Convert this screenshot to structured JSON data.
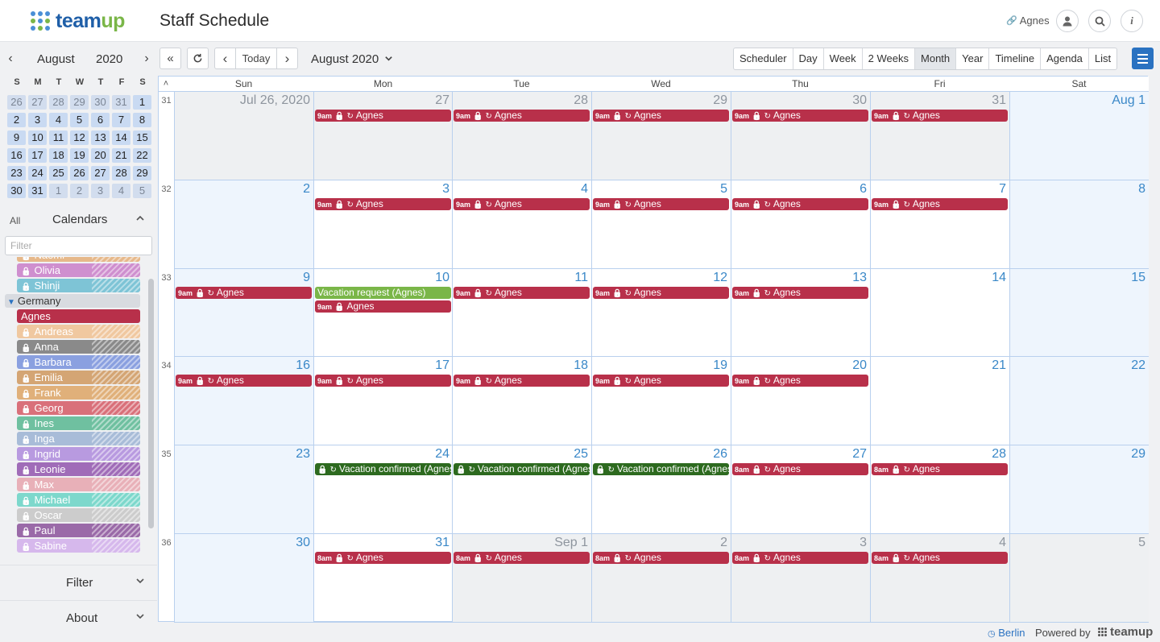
{
  "app": {
    "brand_a": "team",
    "brand_b": "up",
    "title": "Staff Schedule",
    "user": "Agnes"
  },
  "colors": {
    "agnes": "#b8304a",
    "vacation_request": "#7ab648",
    "vacation_confirmed": "#2d6a1f",
    "accent": "#2a72c1"
  },
  "mini_calendar": {
    "month": "August",
    "year": "2020",
    "dow": [
      "S",
      "M",
      "T",
      "W",
      "T",
      "F",
      "S"
    ],
    "weeks": [
      [
        "26",
        "27",
        "28",
        "29",
        "30",
        "31",
        "1"
      ],
      [
        "2",
        "3",
        "4",
        "5",
        "6",
        "7",
        "8"
      ],
      [
        "9",
        "10",
        "11",
        "12",
        "13",
        "14",
        "15"
      ],
      [
        "16",
        "17",
        "18",
        "19",
        "20",
        "21",
        "22"
      ],
      [
        "23",
        "24",
        "25",
        "26",
        "27",
        "28",
        "29"
      ],
      [
        "30",
        "31",
        "1",
        "2",
        "3",
        "4",
        "5"
      ]
    ],
    "other_month": [
      [
        0,
        0
      ],
      [
        0,
        1
      ],
      [
        0,
        2
      ],
      [
        0,
        3
      ],
      [
        0,
        4
      ],
      [
        0,
        5
      ],
      [
        5,
        2
      ],
      [
        5,
        3
      ],
      [
        5,
        4
      ],
      [
        5,
        5
      ],
      [
        5,
        6
      ]
    ]
  },
  "calendars": {
    "all_label": "All",
    "title": "Calendars",
    "filter_placeholder": "Filter",
    "group": "Germany",
    "items": [
      {
        "name": "Naomi",
        "color": "#e6b88a",
        "locked": true
      },
      {
        "name": "Olivia",
        "color": "#cf8fcf",
        "locked": true
      },
      {
        "name": "Shinji",
        "color": "#7ec4d6",
        "locked": true
      },
      {
        "name": "Agnes",
        "color": "#b8304a",
        "locked": false
      },
      {
        "name": "Andreas",
        "color": "#f0c8a0",
        "locked": true
      },
      {
        "name": "Anna",
        "color": "#8a8a8a",
        "locked": true
      },
      {
        "name": "Barbara",
        "color": "#8aa0e0",
        "locked": true
      },
      {
        "name": "Emilia",
        "color": "#d4a574",
        "locked": true
      },
      {
        "name": "Frank",
        "color": "#e0b07a",
        "locked": true
      },
      {
        "name": "Georg",
        "color": "#d9707a",
        "locked": true
      },
      {
        "name": "Ines",
        "color": "#6fc0a0",
        "locked": true
      },
      {
        "name": "Inga",
        "color": "#a8bcd8",
        "locked": true
      },
      {
        "name": "Ingrid",
        "color": "#b89ae0",
        "locked": true
      },
      {
        "name": "Leonie",
        "color": "#a06cb8",
        "locked": true
      },
      {
        "name": "Max",
        "color": "#e8b0b8",
        "locked": true
      },
      {
        "name": "Michael",
        "color": "#7dd8cc",
        "locked": true
      },
      {
        "name": "Oscar",
        "color": "#cccccc",
        "locked": true
      },
      {
        "name": "Paul",
        "color": "#9a6aa8",
        "locked": true
      },
      {
        "name": "Sabine",
        "color": "#d6b8ec",
        "locked": true
      }
    ]
  },
  "sections": {
    "filter": "Filter",
    "about": "About"
  },
  "toolbar": {
    "today": "Today",
    "view_label": "August 2020",
    "views": [
      "Scheduler",
      "Day",
      "Week",
      "2 Weeks",
      "Month",
      "Year",
      "Timeline",
      "Agenda",
      "List"
    ],
    "active_view": "Month"
  },
  "month_view": {
    "dow": [
      "Sun",
      "Mon",
      "Tue",
      "Wed",
      "Thu",
      "Fri",
      "Sat"
    ],
    "weeks": [
      {
        "week": "31",
        "days": [
          "Jul 26, 2020",
          "27",
          "28",
          "29",
          "30",
          "31",
          "Aug 1"
        ],
        "other": [
          0,
          1,
          2,
          3,
          4,
          5
        ]
      },
      {
        "week": "32",
        "days": [
          "2",
          "3",
          "4",
          "5",
          "6",
          "7",
          "8"
        ],
        "other": []
      },
      {
        "week": "33",
        "days": [
          "9",
          "10",
          "11",
          "12",
          "13",
          "14",
          "15"
        ],
        "other": []
      },
      {
        "week": "34",
        "days": [
          "16",
          "17",
          "18",
          "19",
          "20",
          "21",
          "22"
        ],
        "other": []
      },
      {
        "week": "35",
        "days": [
          "23",
          "24",
          "25",
          "26",
          "27",
          "28",
          "29"
        ],
        "other": []
      },
      {
        "week": "36",
        "days": [
          "30",
          "31",
          "Sep 1",
          "2",
          "3",
          "4",
          "5"
        ],
        "other": [
          2,
          3,
          4,
          5,
          6
        ]
      }
    ],
    "events": [
      {
        "w": 0,
        "d": 1,
        "slot": 0,
        "time": "9am",
        "title": "Agnes",
        "kind": "agnes",
        "lock": true,
        "repeat": true
      },
      {
        "w": 0,
        "d": 2,
        "slot": 0,
        "time": "9am",
        "title": "Agnes",
        "kind": "agnes",
        "lock": true,
        "repeat": true
      },
      {
        "w": 0,
        "d": 3,
        "slot": 0,
        "time": "9am",
        "title": "Agnes",
        "kind": "agnes",
        "lock": true,
        "repeat": true
      },
      {
        "w": 0,
        "d": 4,
        "slot": 0,
        "time": "9am",
        "title": "Agnes",
        "kind": "agnes",
        "lock": true,
        "repeat": true
      },
      {
        "w": 0,
        "d": 5,
        "slot": 0,
        "time": "9am",
        "title": "Agnes",
        "kind": "agnes",
        "lock": true,
        "repeat": true
      },
      {
        "w": 1,
        "d": 1,
        "slot": 0,
        "time": "9am",
        "title": "Agnes",
        "kind": "agnes",
        "lock": true,
        "repeat": true
      },
      {
        "w": 1,
        "d": 2,
        "slot": 0,
        "time": "9am",
        "title": "Agnes",
        "kind": "agnes",
        "lock": true,
        "repeat": true
      },
      {
        "w": 1,
        "d": 3,
        "slot": 0,
        "time": "9am",
        "title": "Agnes",
        "kind": "agnes",
        "lock": true,
        "repeat": true
      },
      {
        "w": 1,
        "d": 4,
        "slot": 0,
        "time": "9am",
        "title": "Agnes",
        "kind": "agnes",
        "lock": true,
        "repeat": true
      },
      {
        "w": 1,
        "d": 5,
        "slot": 0,
        "time": "9am",
        "title": "Agnes",
        "kind": "agnes",
        "lock": true,
        "repeat": true
      },
      {
        "w": 2,
        "d": 0,
        "slot": 0,
        "time": "9am",
        "title": "Agnes",
        "kind": "agnes",
        "lock": true,
        "repeat": true
      },
      {
        "w": 2,
        "d": 1,
        "slot": 0,
        "time": "",
        "title": "Vacation request (Agnes)",
        "kind": "vacation_request",
        "lock": false,
        "repeat": false
      },
      {
        "w": 2,
        "d": 1,
        "slot": 1,
        "time": "9am",
        "title": "Agnes",
        "kind": "agnes",
        "lock": true,
        "repeat": false
      },
      {
        "w": 2,
        "d": 2,
        "slot": 0,
        "time": "9am",
        "title": "Agnes",
        "kind": "agnes",
        "lock": true,
        "repeat": true
      },
      {
        "w": 2,
        "d": 3,
        "slot": 0,
        "time": "9am",
        "title": "Agnes",
        "kind": "agnes",
        "lock": true,
        "repeat": true
      },
      {
        "w": 2,
        "d": 4,
        "slot": 0,
        "time": "9am",
        "title": "Agnes",
        "kind": "agnes",
        "lock": true,
        "repeat": true
      },
      {
        "w": 3,
        "d": 0,
        "slot": 0,
        "time": "9am",
        "title": "Agnes",
        "kind": "agnes",
        "lock": true,
        "repeat": true
      },
      {
        "w": 3,
        "d": 1,
        "slot": 0,
        "time": "9am",
        "title": "Agnes",
        "kind": "agnes",
        "lock": true,
        "repeat": true
      },
      {
        "w": 3,
        "d": 2,
        "slot": 0,
        "time": "9am",
        "title": "Agnes",
        "kind": "agnes",
        "lock": true,
        "repeat": true
      },
      {
        "w": 3,
        "d": 3,
        "slot": 0,
        "time": "9am",
        "title": "Agnes",
        "kind": "agnes",
        "lock": true,
        "repeat": true
      },
      {
        "w": 3,
        "d": 4,
        "slot": 0,
        "time": "9am",
        "title": "Agnes",
        "kind": "agnes",
        "lock": true,
        "repeat": true
      },
      {
        "w": 4,
        "d": 1,
        "slot": 0,
        "time": "",
        "title": "Vacation confirmed (Agnes)",
        "kind": "vacation_confirmed",
        "lock": true,
        "repeat": true
      },
      {
        "w": 4,
        "d": 2,
        "slot": 0,
        "time": "",
        "title": "Vacation confirmed (Agnes)",
        "kind": "vacation_confirmed",
        "lock": true,
        "repeat": true
      },
      {
        "w": 4,
        "d": 3,
        "slot": 0,
        "time": "",
        "title": "Vacation confirmed (Agnes)",
        "kind": "vacation_confirmed",
        "lock": true,
        "repeat": true
      },
      {
        "w": 4,
        "d": 4,
        "slot": 0,
        "time": "8am",
        "title": "Agnes",
        "kind": "agnes",
        "lock": true,
        "repeat": true
      },
      {
        "w": 4,
        "d": 5,
        "slot": 0,
        "time": "8am",
        "title": "Agnes",
        "kind": "agnes",
        "lock": true,
        "repeat": true
      },
      {
        "w": 5,
        "d": 1,
        "slot": 0,
        "time": "8am",
        "title": "Agnes",
        "kind": "agnes",
        "lock": true,
        "repeat": true
      },
      {
        "w": 5,
        "d": 2,
        "slot": 0,
        "time": "8am",
        "title": "Agnes",
        "kind": "agnes",
        "lock": true,
        "repeat": true
      },
      {
        "w": 5,
        "d": 3,
        "slot": 0,
        "time": "8am",
        "title": "Agnes",
        "kind": "agnes",
        "lock": true,
        "repeat": true
      },
      {
        "w": 5,
        "d": 4,
        "slot": 0,
        "time": "8am",
        "title": "Agnes",
        "kind": "agnes",
        "lock": true,
        "repeat": true
      },
      {
        "w": 5,
        "d": 5,
        "slot": 0,
        "time": "8am",
        "title": "Agnes",
        "kind": "agnes",
        "lock": true,
        "repeat": true
      }
    ]
  },
  "footer": {
    "timezone": "Berlin",
    "powered_by": "Powered by",
    "brand": "teamup"
  }
}
